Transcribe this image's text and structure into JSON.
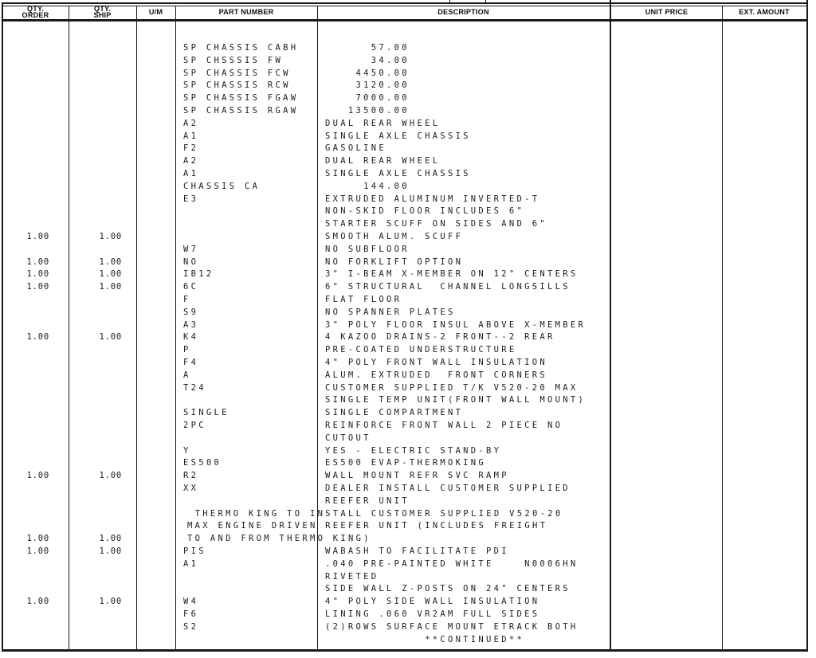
{
  "table": {
    "headers": {
      "qty_order": [
        "QTY.",
        "ORDER"
      ],
      "qty_ship": [
        "QTY.",
        "SHIP"
      ],
      "um": "U/M",
      "part_number": "PART NUMBER",
      "description": "DESCRIPTION",
      "unit_price": "UNIT PRICE",
      "ext_amount": "EXT. AMOUNT"
    },
    "rows": [
      {
        "part": "SP CHASSIS CABH",
        "desc": "      57.00"
      },
      {
        "part": "SP CHSSSIS FW",
        "desc": "      34.00"
      },
      {
        "part": "SP CHASSIS FCW",
        "desc": "    4450.00"
      },
      {
        "part": "SP CHASSIS RCW",
        "desc": "    3120.00"
      },
      {
        "part": "SP CHASSIS FGAW",
        "desc": "    7000.00"
      },
      {
        "part": "SP CHASSIS RGAW",
        "desc": "   13500.00"
      },
      {
        "part": "A2",
        "desc": "DUAL REAR WHEEL"
      },
      {
        "part": "A1",
        "desc": "SINGLE AXLE CHASSIS"
      },
      {
        "part": "F2",
        "desc": "GASOLINE"
      },
      {
        "part": "A2",
        "desc": "DUAL REAR WHEEL"
      },
      {
        "part": "A1",
        "desc": "SINGLE AXLE CHASSIS"
      },
      {
        "part": "CHASSIS CA",
        "desc": "     144.00"
      },
      {
        "part": "E3",
        "desc": "EXTRUDED ALUMINUM INVERTED-T"
      },
      {
        "desc": "NON-SKID FLOOR INCLUDES 6\""
      },
      {
        "desc": "STARTER SCUFF ON SIDES AND 6\""
      },
      {
        "qty_order": "1.00",
        "qty_ship": "1.00",
        "desc": "SMOOTH ALUM. SCUFF"
      },
      {
        "part": "W7",
        "desc": "NO SUBFLOOR"
      },
      {
        "qty_order": "1.00",
        "qty_ship": "1.00",
        "part": "NO",
        "desc": "NO FORKLIFT OPTION"
      },
      {
        "qty_order": "1.00",
        "qty_ship": "1.00",
        "part": "IB12",
        "desc": "3\" I-BEAM X-MEMBER ON 12\" CENTERS"
      },
      {
        "qty_order": "1.00",
        "qty_ship": "1.00",
        "part": "6C",
        "desc": "6\" STRUCTURAL  CHANNEL LONGSILLS"
      },
      {
        "part": "F",
        "desc": "FLAT FLOOR"
      },
      {
        "part": "S9",
        "desc": "NO SPANNER PLATES"
      },
      {
        "part": "A3",
        "desc": "3\" POLY FLOOR INSUL ABOVE X-MEMBER"
      },
      {
        "qty_order": "1.00",
        "qty_ship": "1.00",
        "part": "K4",
        "desc": "4 KAZOO DRAINS-2 FRONT--2 REAR"
      },
      {
        "part": "P",
        "desc": "PRE-COATED UNDERSTRUCTURE"
      },
      {
        "part": "F4",
        "desc": "4\" POLY FRONT WALL INSULATION"
      },
      {
        "part": "A",
        "desc": "ALUM. EXTRUDED  FRONT CORNERS"
      },
      {
        "part": "T24",
        "desc": "CUSTOMER SUPPLIED T/K V520-20 MAX"
      },
      {
        "desc": "SINGLE TEMP UNIT(FRONT WALL MOUNT)"
      },
      {
        "part": "SINGLE",
        "desc": "SINGLE COMPARTMENT"
      },
      {
        "part": "2PC",
        "desc": "REINFORCE FRONT WALL 2 PIECE NO"
      },
      {
        "desc": "CUTOUT"
      },
      {
        "part": "Y",
        "desc": "YES - ELECTRIC STAND-BY"
      },
      {
        "part": "ES500",
        "desc": "ES500 EVAP-THERMOKING"
      },
      {
        "qty_order": "1.00",
        "qty_ship": "1.00",
        "part": "R2",
        "desc": "WALL MOUNT REFR SVC RAMP"
      },
      {
        "part": "XX",
        "desc": "DEALER INSTALL CUSTOMER SUPPLIED"
      },
      {
        "desc": "REEFER UNIT"
      },
      {
        "span": " THERMO KING TO INSTALL CUSTOMER SUPPLIED V520-20"
      },
      {
        "span": "MAX ENGINE DRIVEN REEFER UNIT (INCLUDES FREIGHT"
      },
      {
        "qty_order": "1.00",
        "qty_ship": "1.00",
        "span": "TO AND FROM THERMO KING)"
      },
      {
        "qty_order": "1.00",
        "qty_ship": "1.00",
        "part": "PIS",
        "desc": "WABASH TO FACILITATE PDI"
      },
      {
        "part": "A1",
        "desc": ".040 PRE-PAINTED WHITE    N0006HN"
      },
      {
        "desc": "RIVETED"
      },
      {
        "desc": "SIDE WALL Z-POSTS ON 24\" CENTERS"
      },
      {
        "qty_order": "1.00",
        "qty_ship": "1.00",
        "part": "W4",
        "desc": "4\" POLY SIDE WALL INSULATION"
      },
      {
        "part": "F6",
        "desc": "LINING .060 VR2AM FULL SIDES"
      },
      {
        "part": "S2",
        "desc": "(2)ROWS SURFACE MOUNT ETRACK BOTH"
      },
      {
        "desc": "             **CONTINUED**"
      }
    ]
  }
}
